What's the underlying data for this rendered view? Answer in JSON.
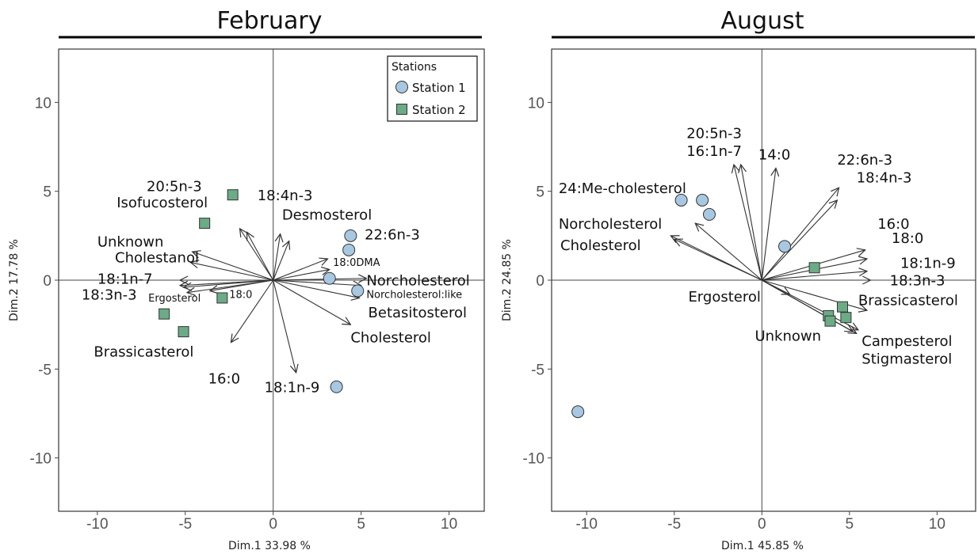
{
  "colors": {
    "station1": "#a8c8e2",
    "station2": "#6bab86",
    "arrow": "#333333",
    "frame": "#444444"
  },
  "legend": {
    "title": "Stations",
    "items": [
      {
        "label": "Station 1",
        "shape": "circle"
      },
      {
        "label": "Station 2",
        "shape": "square"
      }
    ]
  },
  "chart_data": [
    {
      "type": "scatter",
      "subtype": "pca-biplot",
      "title": "February",
      "xlabel": "Dim.1 33.98 %",
      "ylabel": "Dim.2 17.78 %",
      "xlim": [
        -12.2,
        12.0
      ],
      "ylim": [
        -13.0,
        13.0
      ],
      "xticks": [
        -10,
        -5,
        0,
        5,
        10
      ],
      "yticks": [
        -10,
        -5,
        0,
        5,
        10
      ],
      "legend_position": "top-right",
      "points": [
        {
          "station": "Station 1",
          "x": 4.4,
          "y": 2.5
        },
        {
          "station": "Station 1",
          "x": 4.3,
          "y": 1.7
        },
        {
          "station": "Station 1",
          "x": 3.2,
          "y": 0.1
        },
        {
          "station": "Station 1",
          "x": 4.8,
          "y": -0.6
        },
        {
          "station": "Station 1",
          "x": 3.6,
          "y": -6.0
        },
        {
          "station": "Station 2",
          "x": -2.3,
          "y": 4.8
        },
        {
          "station": "Station 2",
          "x": -3.9,
          "y": 3.2
        },
        {
          "station": "Station 2",
          "x": -2.9,
          "y": -1.0
        },
        {
          "station": "Station 2",
          "x": -6.2,
          "y": -1.9
        },
        {
          "station": "Station 2",
          "x": -5.1,
          "y": -2.9
        }
      ],
      "vectors": [
        {
          "label": "20:5n-3",
          "x": -1.9,
          "y": 2.9
        },
        {
          "label": "Isofucosterol",
          "x": -1.5,
          "y": 2.7
        },
        {
          "label": "18:4n-3",
          "x": 0.4,
          "y": 2.6
        },
        {
          "label": "Desmosterol",
          "x": 0.9,
          "y": 2.2
        },
        {
          "label": "22:6n-3",
          "x": 3.1,
          "y": 1.2
        },
        {
          "label": "18:0DMA",
          "x": 3.2,
          "y": 0.6
        },
        {
          "label": "Norcholesterol",
          "x": 5.3,
          "y": 0.1
        },
        {
          "label": "Norcholesterol:like",
          "x": 5.0,
          "y": -0.3
        },
        {
          "label": "Betasitosterol",
          "x": 4.9,
          "y": -1.0
        },
        {
          "label": "Cholesterol",
          "x": 4.4,
          "y": -2.5
        },
        {
          "label": "18:1n-9",
          "x": 1.3,
          "y": -5.2
        },
        {
          "label": "16:0",
          "x": -2.4,
          "y": -3.5
        },
        {
          "label": "Brassicasterol",
          "x": -4.9,
          "y": -0.7
        },
        {
          "label": "18:0",
          "x": -3.6,
          "y": -0.6
        },
        {
          "label": "Ergosterol",
          "x": -5.1,
          "y": -0.4
        },
        {
          "label": "18:3n-3",
          "x": -5.3,
          "y": -0.3
        },
        {
          "label": "18:1n-7",
          "x": -5.3,
          "y": 0.0
        },
        {
          "label": "Cholestanol",
          "x": -4.7,
          "y": 1.0
        },
        {
          "label": "Unknown",
          "x": -4.6,
          "y": 1.6
        }
      ],
      "labels": [
        {
          "text": "20:5n-3",
          "x": -7.2,
          "y": 5.0,
          "anchor": "start"
        },
        {
          "text": "Isofucosterol",
          "x": -8.9,
          "y": 4.1,
          "anchor": "start"
        },
        {
          "text": "18:4n-3",
          "x": -0.9,
          "y": 4.5,
          "anchor": "start"
        },
        {
          "text": "Desmosterol",
          "x": 0.5,
          "y": 3.4,
          "anchor": "start"
        },
        {
          "text": "22:6n-3",
          "x": 5.2,
          "y": 2.3,
          "anchor": "start"
        },
        {
          "text": "18:0DMA",
          "x": 3.4,
          "y": 0.8,
          "anchor": "start",
          "small": true
        },
        {
          "text": "Norcholesterol",
          "x": 5.3,
          "y": -0.3,
          "anchor": "start"
        },
        {
          "text": "Norcholesterol:like",
          "x": 5.3,
          "y": -1.0,
          "anchor": "start",
          "small": true
        },
        {
          "text": "Betasitosterol",
          "x": 5.4,
          "y": -2.1,
          "anchor": "start"
        },
        {
          "text": "Cholesterol",
          "x": 4.4,
          "y": -3.5,
          "anchor": "start"
        },
        {
          "text": "18:1n-9",
          "x": -0.5,
          "y": -6.3,
          "anchor": "start"
        },
        {
          "text": "16:0",
          "x": -3.7,
          "y": -5.8,
          "anchor": "start"
        },
        {
          "text": "Brassicasterol",
          "x": -10.2,
          "y": -4.3,
          "anchor": "start"
        },
        {
          "text": "18:0",
          "x": -2.5,
          "y": -1.0,
          "anchor": "start",
          "small": true
        },
        {
          "text": "Ergosterol",
          "x": -7.1,
          "y": -1.2,
          "anchor": "start",
          "small": true
        },
        {
          "text": "18:3n-3",
          "x": -10.9,
          "y": -1.1,
          "anchor": "start"
        },
        {
          "text": "18:1n-7",
          "x": -10.0,
          "y": -0.2,
          "anchor": "start"
        },
        {
          "text": "Cholestanol",
          "x": -9.0,
          "y": 1.0,
          "anchor": "start"
        },
        {
          "text": "Unknown",
          "x": -10.0,
          "y": 1.9,
          "anchor": "start"
        }
      ]
    },
    {
      "type": "scatter",
      "subtype": "pca-biplot",
      "title": "August",
      "xlabel": "Dim.1 45.85 %",
      "ylabel": "Dim.2 24.85 %",
      "xlim": [
        -12.0,
        12.2
      ],
      "ylim": [
        -13.0,
        13.0
      ],
      "xticks": [
        -10,
        -5,
        0,
        5,
        10
      ],
      "yticks": [
        -10,
        -5,
        0,
        5,
        10
      ],
      "points": [
        {
          "station": "Station 1",
          "x": -4.6,
          "y": 4.5
        },
        {
          "station": "Station 1",
          "x": -3.4,
          "y": 4.5
        },
        {
          "station": "Station 1",
          "x": -3.0,
          "y": 3.7
        },
        {
          "station": "Station 1",
          "x": 1.3,
          "y": 1.9
        },
        {
          "station": "Station 1",
          "x": -10.5,
          "y": -7.4
        },
        {
          "station": "Station 2",
          "x": 3.0,
          "y": 0.7
        },
        {
          "station": "Station 2",
          "x": 4.6,
          "y": -1.5
        },
        {
          "station": "Station 2",
          "x": 3.8,
          "y": -2.0
        },
        {
          "station": "Station 2",
          "x": 4.8,
          "y": -2.1
        },
        {
          "station": "Station 2",
          "x": 3.9,
          "y": -2.3
        }
      ],
      "vectors": [
        {
          "label": "20:5n-3",
          "x": -1.6,
          "y": 6.5
        },
        {
          "label": "16:1n-7",
          "x": -1.2,
          "y": 6.5
        },
        {
          "label": "14:0",
          "x": 0.8,
          "y": 6.3
        },
        {
          "label": "22:6n-3",
          "x": 4.4,
          "y": 5.2
        },
        {
          "label": "18:4n-3",
          "x": 4.3,
          "y": 4.5
        },
        {
          "label": "24:Me-cholesterol",
          "x": -3.8,
          "y": 3.2
        },
        {
          "label": "Norcholesterol",
          "x": -5.2,
          "y": 2.5
        },
        {
          "label": "Cholesterol",
          "x": -5.0,
          "y": 2.3
        },
        {
          "label": "16:0",
          "x": 5.9,
          "y": 1.7
        },
        {
          "label": "18:0",
          "x": 6.0,
          "y": 1.2
        },
        {
          "label": "18:1n-9",
          "x": 6.0,
          "y": 0.5
        },
        {
          "label": "18:3n-3",
          "x": 6.2,
          "y": 0.0
        },
        {
          "label": "Brassicasterol",
          "x": 6.0,
          "y": -1.7
        },
        {
          "label": "Ergosterol",
          "x": 1.6,
          "y": -0.8
        },
        {
          "label": "Unknown",
          "x": 5.2,
          "y": -2.9
        },
        {
          "label": "Campesterol",
          "x": 5.4,
          "y": -3.0
        },
        {
          "label": "Stigmasterol",
          "x": 5.5,
          "y": -2.8
        }
      ],
      "labels": [
        {
          "text": "20:5n-3",
          "x": -4.3,
          "y": 8.0,
          "anchor": "start"
        },
        {
          "text": "16:1n-7",
          "x": -4.3,
          "y": 7.0,
          "anchor": "start"
        },
        {
          "text": "14:0",
          "x": -0.2,
          "y": 6.8,
          "anchor": "start"
        },
        {
          "text": "22:6n-3",
          "x": 4.3,
          "y": 6.5,
          "anchor": "start"
        },
        {
          "text": "18:4n-3",
          "x": 5.4,
          "y": 5.5,
          "anchor": "start"
        },
        {
          "text": "24:Me-cholesterol",
          "x": -11.6,
          "y": 4.9,
          "anchor": "start"
        },
        {
          "text": "Norcholesterol",
          "x": -11.6,
          "y": 2.9,
          "anchor": "start"
        },
        {
          "text": "Cholesterol",
          "x": -11.5,
          "y": 1.7,
          "anchor": "start"
        },
        {
          "text": "16:0",
          "x": 6.6,
          "y": 2.9,
          "anchor": "start"
        },
        {
          "text": "18:0",
          "x": 7.4,
          "y": 2.1,
          "anchor": "start"
        },
        {
          "text": "18:1n-9",
          "x": 7.9,
          "y": 0.7,
          "anchor": "start"
        },
        {
          "text": "18:3n-3",
          "x": 7.3,
          "y": -0.3,
          "anchor": "start"
        },
        {
          "text": "Brassicasterol",
          "x": 5.5,
          "y": -1.4,
          "anchor": "start"
        },
        {
          "text": "Ergosterol",
          "x": -4.2,
          "y": -1.2,
          "anchor": "start"
        },
        {
          "text": "Unknown",
          "x": -0.4,
          "y": -3.4,
          "anchor": "start"
        },
        {
          "text": "Campesterol",
          "x": 5.7,
          "y": -3.7,
          "anchor": "start"
        },
        {
          "text": "Stigmasterol",
          "x": 5.7,
          "y": -4.7,
          "anchor": "start"
        }
      ]
    }
  ]
}
